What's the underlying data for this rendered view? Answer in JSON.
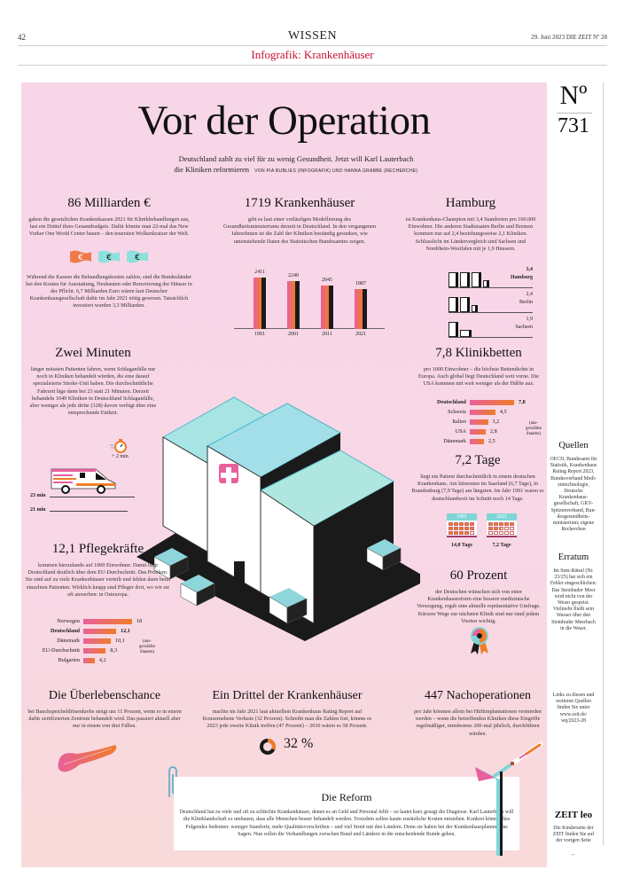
{
  "masthead": {
    "page_number": "42",
    "section": "WISSEN",
    "issue": "29. Juni 2023   DIE ZEIT Nº 28",
    "subheading": "Infografik: Krankenhäuser"
  },
  "headline": {
    "title": "Vor der Operation",
    "lede_line1": "Deutschland zahlt zu viel für zu wenig Gesundheit. Jetzt will Karl Lauterbach",
    "lede_line2": "die Kliniken reformieren",
    "byline": "VON PIA BUBLIES (INFOGRAFIK) UND HANNA GRABBE (RECHERCHE)"
  },
  "colors": {
    "background_pink": "#f7d6e8",
    "accent_pink": "#e8609c",
    "accent_orange": "#f07c28",
    "accent_teal": "#7fd6d8",
    "accent_black": "#1a1a1a",
    "section_red": "#c8102e"
  },
  "blocks": {
    "milliarden": {
      "title": "86 Milliarden €",
      "text1": "gaben die gesetzlichen Krankenkassen 2021 für Klinikbehandlungen aus, fast ein Drittel ihres Gesamtbudgets. Dafür könnte man 22-mal das New Yorker One World Center bauen – den teuersten Wolkenkratzer der Welt.",
      "text2": "Während die Kassen die Behandlungskosten zahlen, sind die Bundesländer bei den Kosten für Ausstattung, Neubauten oder Renovierung der Häuser in der Pflicht. 6,7 Milliarden Euro wären laut Deutscher Krankenhausgesellschaft dafür im Jahr 2021 nötig gewesen. Tatsächlich investiert wurden 3,3 Milliarden.",
      "icon": "euro-banknote-icon",
      "currency_symbol": "€"
    },
    "krankenhaeuser": {
      "title": "1719 Krankenhäuser",
      "text": "gibt es laut einer vorläufigen Modellierung des Gesundheitsministeriums derzeit in Deutschland. In den vergangenen Jahrzehnten ist die Zahl der Kliniken beständig gesunken, wie untenstehende Daten des Statistischen Bundesamtes zeigen."
    },
    "hamburg": {
      "title": "Hamburg",
      "text": "ist Krankenhaus-Champion mit 3,4 Standorten pro 100.000 Einwohner. Die anderen Stadtstaaten Berlin und Bremen kommen nur auf 2,4 beziehungsweise 2,1 Kliniken. Schlusslicht im Ländervergleich sind Sachsen und Nordrhein-Westfalen mit je 1,9 Häusern.",
      "rows": [
        {
          "value": "3,4",
          "label": "Hamburg",
          "bold": true,
          "amount": 3.4
        },
        {
          "value": "2,4",
          "label": "Berlin",
          "bold": false,
          "amount": 2.4
        },
        {
          "value": "1,9",
          "label": "Sachsen",
          "bold": false,
          "amount": 1.9
        }
      ]
    },
    "minuten": {
      "title": "Zwei Minuten",
      "text": "länger müssten Patienten fahren, wenn Schlaganfälle nur noch in Kliniken behandelt würden, die eine darauf spezialisierte Stroke-Unit haben. Die durchschnittliche Fahrzeit läge dann bei 23 statt 21 Minuten. Derzeit behandeln 1049 Kliniken in Deutschland Schlaganfälle, aber weniger als jede dritte (328) davon verfügt über eine entsprechende Einheit.",
      "plus_label": "+ 2 min",
      "label_23": "23 min",
      "label_21": "21 min",
      "icons": [
        "stopwatch-icon",
        "ambulance-icon"
      ]
    },
    "klinikbetten": {
      "title": "7,8 Klinikbetten",
      "text": "pro 1000 Einwohner – die höchste Bettendichte in Europa. Auch global liegt Deutschland weit vorne. Die USA kommen mit weit weniger als der Hälfte aus.",
      "note": "(aus-gewählte Staaten)",
      "rows": [
        {
          "label": "Deutschland",
          "value": "7,8",
          "amount": 7.8,
          "bold": true
        },
        {
          "label": "Schweiz",
          "value": "4,5",
          "amount": 4.5,
          "bold": false
        },
        {
          "label": "Italien",
          "value": "3,2",
          "amount": 3.2,
          "bold": false
        },
        {
          "label": "USA",
          "value": "2,8",
          "amount": 2.8,
          "bold": false
        },
        {
          "label": "Dänemark",
          "value": "2,5",
          "amount": 2.5,
          "bold": false
        }
      ]
    },
    "tage": {
      "title": "7,2 Tage",
      "text": "liegt ein Patient durchschnittlich in einem deutschen Krankenhaus. Am kürzesten im Saarland (6,7 Tage), in Brandenburg (7,9 Tage) am längsten. Im Jahr 1991 waren es deutschlandweit im Schnitt noch 14 Tage.",
      "calendars": [
        {
          "year": "1991",
          "label": "14,0 Tage",
          "days": 14.0
        },
        {
          "year": "2021",
          "label": "7,2 Tage",
          "days": 7.2
        }
      ]
    },
    "pflege": {
      "title": "12,1 Pflegekräfte",
      "text": "kommen hierzulande auf 1000 Einwohner. Damit liegt Deutschland deutlich über dem EU-Durchschnitt. Das Problem: Sie sind auf zu viele Krankenhäuser verteilt und fehlen dann beim einzelnen Patienten. Wirklich knapp sind Pfleger dort, wo wir sie oft anwerben: in Osteuropa.",
      "note": "(aus-gewählte Staaten)",
      "rows": [
        {
          "label": "Norwegen",
          "value": "18",
          "amount": 18,
          "bold": false
        },
        {
          "label": "Deutschland",
          "value": "12,1",
          "amount": 12.1,
          "bold": true
        },
        {
          "label": "Dänemark",
          "value": "10,1",
          "amount": 10.1,
          "bold": false
        },
        {
          "label": "EU-Durchschnitt",
          "value": "8,3",
          "amount": 8.3,
          "bold": false
        },
        {
          "label": "Bulgarien",
          "value": "4,2",
          "amount": 4.2,
          "bold": false
        }
      ]
    },
    "prozent60": {
      "title": "60 Prozent",
      "text": "der Deutschen wünschen sich von einer Krankenhausreform eine bessere medizinische Versorgung, ergab eine aktuelle repräsentative Umfrage. Kürzere Wege zur nächsten Klinik sind nur rund jedem Vierten wichtig.",
      "icon": "award-rosette-icon"
    },
    "ueberleben": {
      "title": "Die Überlebenschance",
      "text": "bei Bauchspeicheldrüsenkrebs steigt um 11 Prozent, wenn er in einem dafür zertifizierten Zentrum behandelt wird. Das passiert aktuell aber nur in einem von drei Fällen.",
      "icon": "pancreas-icon"
    },
    "drittel": {
      "title": "Ein Drittel der Krankenhäuser",
      "text": "machte im Jahr 2021 laut aktuellem Krankenhaus Rating Report auf Konzernebene Verluste (32 Prozent). Schreibt man die Zahlen fort, könnte es 2023 jede zweite Klinik treffen (47 Prozent) – 2030 wären es 58 Prozent.",
      "percent_label": "32 %",
      "percent": 32
    },
    "nachoperationen": {
      "title": "447 Nachoperationen",
      "text": "pro Jahr könnten allein bei Hüftimplantationen vermieden werden – wenn die betreffenden Kliniken diese Eingriffe regelmäßiger, mindestens 200-mal jährlich, durchführen würden.",
      "icon": "scalpel-icon"
    }
  },
  "reform": {
    "title": "Die Reform",
    "text": "Deutschland hat zu viele und oft zu schlechte Krankenhäuser, denen es an Geld und Personal fehlt – so lautet kurz gesagt die Diagnose. Karl Lauterbach will die Klinik­landschaft so umbauen, dass alle Menschen besser behandelt werden. Trotzdem sollen kaum zusätzliche Kosten entstehen. Konkret könnte dies Folgendes bedeuten: weniger Standorte, mehr Qualitätsvorschriften – und viel Streit mit den Ländern. Denn sie haben bei der Krankenhausplanung das Sagen. Nun sollen die Verhandlungen zwischen Bund und Ländern in die entscheidende Runde gehen.",
    "icon": "paperclip-icon"
  },
  "sidebar": {
    "number_sign": "Nº",
    "number": "731",
    "quellen_title": "Quellen",
    "quellen_text": "OECD, Bundesamt für Statistik, Krankenhaus Rating Report 2023, Bundes­verband Medi­zintechnologie, Deutsche Krankenhaus­gesellschaft, GKV-Spitzen­verband, Bun­desgesundheits­ministerium; eigene Recherchen",
    "erratum_title": "Erratum",
    "erratum_text": "Im Sem-Rätsel (Nr. 23/25) hat sich ein Fehler einge­schlichen: Das Steinhuder Meer wird nicht von der Weser gespeist. Vielmehr fließt sein Wasser über den Steinhuder Meerbach in die Weser.",
    "links_text": "Links zu diesen und weiteren Quellen finden Sie unter www.zeit.de/ wq/2023-28",
    "zeitleo_logo": "ZEIT leo",
    "zeitleo_text": "Die Kinderseite der ZEIT finden Sie auf der vorigen Seite",
    "arrow": "←"
  },
  "chart_data": {
    "type": "bar",
    "title": "Zahl der Krankenhäuser in Deutschland",
    "categories": [
      "1991",
      "2001",
      "2011",
      "2021"
    ],
    "values": [
      2411,
      2240,
      2045,
      1887
    ],
    "value_labels": [
      "2411",
      "2240",
      "2045",
      "1887"
    ],
    "xlabel": "",
    "ylabel": "",
    "ylim": [
      0,
      2500
    ],
    "grid": false
  }
}
